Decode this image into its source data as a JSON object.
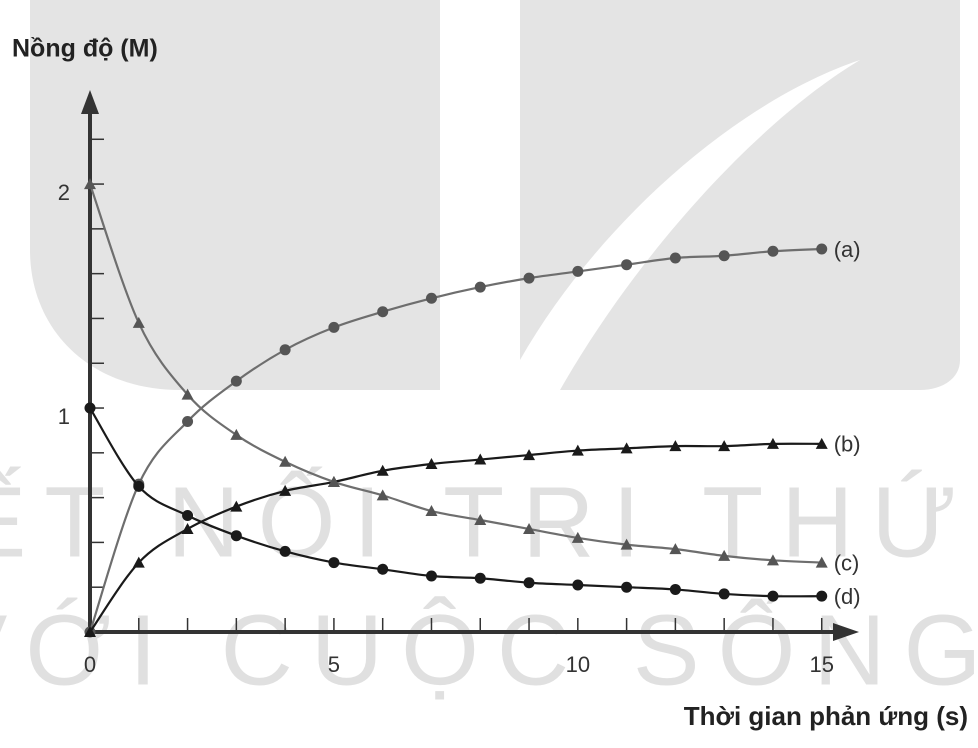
{
  "chart_data": {
    "type": "line",
    "ylabel": "Nồng độ (M)",
    "xlabel": "Thời gian phản ứng (s)",
    "watermark": [
      "KẾT NỐI TRI THỨC",
      "VỚI CUỘC SỐNG"
    ],
    "x": [
      0,
      1,
      2,
      3,
      4,
      5,
      6,
      7,
      8,
      9,
      10,
      11,
      12,
      13,
      14,
      15
    ],
    "series": [
      {
        "name": "(a)",
        "color": "#6e6e6e",
        "marker_color": "#555555",
        "marker": "circle",
        "values": [
          0,
          0.66,
          0.94,
          1.12,
          1.26,
          1.36,
          1.43,
          1.49,
          1.54,
          1.58,
          1.61,
          1.64,
          1.67,
          1.68,
          1.7,
          1.71
        ]
      },
      {
        "name": "(b)",
        "color": "#1a1a1a",
        "marker_color": "#1a1a1a",
        "marker": "triangle",
        "values": [
          0,
          0.31,
          0.46,
          0.56,
          0.63,
          0.67,
          0.72,
          0.75,
          0.77,
          0.79,
          0.81,
          0.82,
          0.83,
          0.83,
          0.84,
          0.84
        ]
      },
      {
        "name": "(c)",
        "color": "#6e6e6e",
        "marker_color": "#555555",
        "marker": "triangle",
        "values": [
          2.0,
          1.38,
          1.06,
          0.88,
          0.76,
          0.67,
          0.61,
          0.54,
          0.5,
          0.46,
          0.42,
          0.39,
          0.37,
          0.34,
          0.32,
          0.31
        ]
      },
      {
        "name": "(d)",
        "color": "#1a1a1a",
        "marker_color": "#1a1a1a",
        "marker": "circle",
        "values": [
          1.0,
          0.65,
          0.52,
          0.43,
          0.36,
          0.31,
          0.28,
          0.25,
          0.24,
          0.22,
          0.21,
          0.2,
          0.19,
          0.17,
          0.16,
          0.16
        ]
      }
    ],
    "xlim": [
      0,
      15.6
    ],
    "ylim": [
      0,
      2.42
    ],
    "xticks": [
      0,
      5,
      10,
      15
    ],
    "xminorticks": [
      1,
      2,
      3,
      4,
      6,
      7,
      8,
      9,
      11,
      12,
      13,
      14
    ],
    "yticks": [
      1,
      2
    ],
    "yminorticks": [
      0.2,
      0.4,
      0.6,
      0.8,
      1.2,
      1.4,
      1.6,
      1.8,
      2.2
    ],
    "grid": false
  }
}
